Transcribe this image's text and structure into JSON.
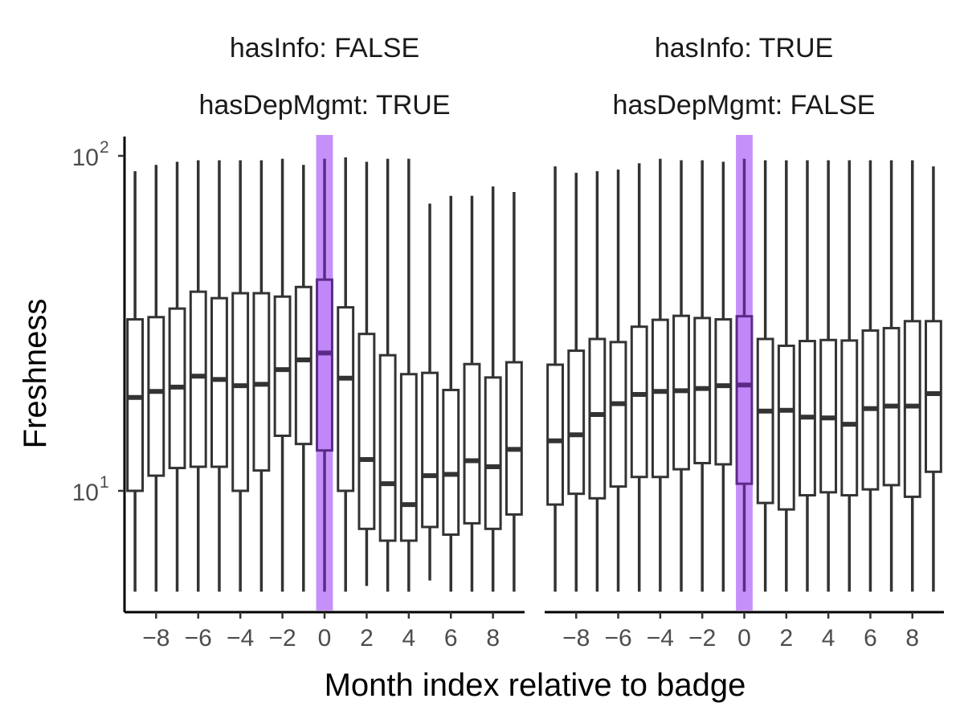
{
  "chart_data": {
    "type": "boxplot",
    "xlabel": "Month index relative to badge",
    "ylabel": "Freshness",
    "y_scale": "log10",
    "ylim": [
      5,
      125
    ],
    "y_ticks": [
      {
        "value": 10,
        "base": "10",
        "exp": "1"
      },
      {
        "value": 100,
        "base": "10",
        "exp": "2"
      }
    ],
    "x_ticks": [
      -8,
      -6,
      -4,
      -2,
      0,
      2,
      4,
      6,
      8
    ],
    "x_tick_labels": [
      "−8",
      "−6",
      "−4",
      "−2",
      "0",
      "2",
      "4",
      "6",
      "8"
    ],
    "xlim": [
      -9.5,
      9.5
    ],
    "highlight_x": 0,
    "highlight_color": "#a855f7",
    "box_stroke": "#333333",
    "highlight_stroke": "#5b2a86",
    "facets": [
      {
        "strip": [
          "hasInfo: FALSE",
          "hasDepMgmt: TRUE"
        ],
        "boxes": [
          {
            "x": -9,
            "min": 5,
            "q1": 10.0,
            "median": 19.0,
            "q3": 32.5,
            "max": 90
          },
          {
            "x": -8,
            "min": 5,
            "q1": 11.1,
            "median": 19.8,
            "q3": 33.0,
            "max": 94
          },
          {
            "x": -7,
            "min": 5,
            "q1": 11.7,
            "median": 20.4,
            "q3": 35.0,
            "max": 96
          },
          {
            "x": -6,
            "min": 5,
            "q1": 11.8,
            "median": 22.0,
            "q3": 39.3,
            "max": 97
          },
          {
            "x": -5,
            "min": 5,
            "q1": 11.8,
            "median": 21.5,
            "q3": 37.6,
            "max": 97
          },
          {
            "x": -4,
            "min": 5,
            "q1": 10.0,
            "median": 20.6,
            "q3": 38.9,
            "max": 97
          },
          {
            "x": -3,
            "min": 5,
            "q1": 11.5,
            "median": 20.8,
            "q3": 38.9,
            "max": 97
          },
          {
            "x": -2,
            "min": 5,
            "q1": 14.6,
            "median": 23.0,
            "q3": 38.0,
            "max": 98
          },
          {
            "x": -1,
            "min": 5,
            "q1": 13.8,
            "median": 24.6,
            "q3": 40.6,
            "max": 94
          },
          {
            "x": 0,
            "min": 5,
            "q1": 13.2,
            "median": 25.8,
            "q3": 42.7,
            "max": 98
          },
          {
            "x": 1,
            "min": 5,
            "q1": 10.0,
            "median": 21.7,
            "q3": 35.3,
            "max": 99
          },
          {
            "x": 2,
            "min": 5.2,
            "q1": 7.7,
            "median": 12.4,
            "q3": 29.4,
            "max": 96
          },
          {
            "x": 3,
            "min": 5,
            "q1": 7.1,
            "median": 10.5,
            "q3": 25.4,
            "max": 98
          },
          {
            "x": 4,
            "min": 5,
            "q1": 7.1,
            "median": 9.1,
            "q3": 22.3,
            "max": 98
          },
          {
            "x": 5,
            "min": 5.4,
            "q1": 7.8,
            "median": 11.1,
            "q3": 22.5,
            "max": 72
          },
          {
            "x": 6,
            "min": 5,
            "q1": 7.4,
            "median": 11.2,
            "q3": 20.0,
            "max": 76
          },
          {
            "x": 7,
            "min": 5,
            "q1": 8.0,
            "median": 12.3,
            "q3": 23.9,
            "max": 76
          },
          {
            "x": 8,
            "min": 5,
            "q1": 7.7,
            "median": 11.8,
            "q3": 21.8,
            "max": 81
          },
          {
            "x": 9,
            "min": 5,
            "q1": 8.5,
            "median": 13.3,
            "q3": 24.2,
            "max": 78
          }
        ]
      },
      {
        "strip": [
          "hasInfo: TRUE",
          "hasDepMgmt: FALSE"
        ],
        "boxes": [
          {
            "x": -9,
            "min": 5,
            "q1": 9.1,
            "median": 14.1,
            "q3": 23.8,
            "max": 93
          },
          {
            "x": -8,
            "min": 5,
            "q1": 9.8,
            "median": 14.7,
            "q3": 26.2,
            "max": 89
          },
          {
            "x": -7,
            "min": 5,
            "q1": 9.5,
            "median": 16.9,
            "q3": 28.4,
            "max": 90
          },
          {
            "x": -6,
            "min": 5,
            "q1": 10.3,
            "median": 18.2,
            "q3": 27.8,
            "max": 91
          },
          {
            "x": -5,
            "min": 5,
            "q1": 11.0,
            "median": 19.4,
            "q3": 30.9,
            "max": 95
          },
          {
            "x": -4,
            "min": 5,
            "q1": 11.0,
            "median": 19.8,
            "q3": 32.4,
            "max": 98
          },
          {
            "x": -3,
            "min": 5,
            "q1": 11.6,
            "median": 19.9,
            "q3": 33.3,
            "max": 97
          },
          {
            "x": -2,
            "min": 5,
            "q1": 12.1,
            "median": 20.2,
            "q3": 32.8,
            "max": 97
          },
          {
            "x": -1,
            "min": 5,
            "q1": 12.0,
            "median": 20.6,
            "q3": 32.5,
            "max": 96
          },
          {
            "x": 0,
            "min": 5,
            "q1": 10.5,
            "median": 20.7,
            "q3": 33.2,
            "max": 98
          },
          {
            "x": 1,
            "min": 5,
            "q1": 9.2,
            "median": 17.3,
            "q3": 28.4,
            "max": 97
          },
          {
            "x": 2,
            "min": 5,
            "q1": 8.8,
            "median": 17.4,
            "q3": 27.1,
            "max": 97
          },
          {
            "x": 3,
            "min": 5,
            "q1": 9.7,
            "median": 16.6,
            "q3": 28.0,
            "max": 97
          },
          {
            "x": 4,
            "min": 5,
            "q1": 9.9,
            "median": 16.5,
            "q3": 28.2,
            "max": 97
          },
          {
            "x": 5,
            "min": 5,
            "q1": 9.7,
            "median": 15.8,
            "q3": 28.1,
            "max": 97
          },
          {
            "x": 6,
            "min": 5,
            "q1": 10.1,
            "median": 17.6,
            "q3": 30.1,
            "max": 97
          },
          {
            "x": 7,
            "min": 5,
            "q1": 10.4,
            "median": 17.9,
            "q3": 30.6,
            "max": 97
          },
          {
            "x": 8,
            "min": 5,
            "q1": 9.6,
            "median": 17.9,
            "q3": 32.1,
            "max": 97
          },
          {
            "x": 9,
            "min": 5,
            "q1": 11.4,
            "median": 19.5,
            "q3": 32.1,
            "max": 93
          }
        ]
      }
    ]
  }
}
